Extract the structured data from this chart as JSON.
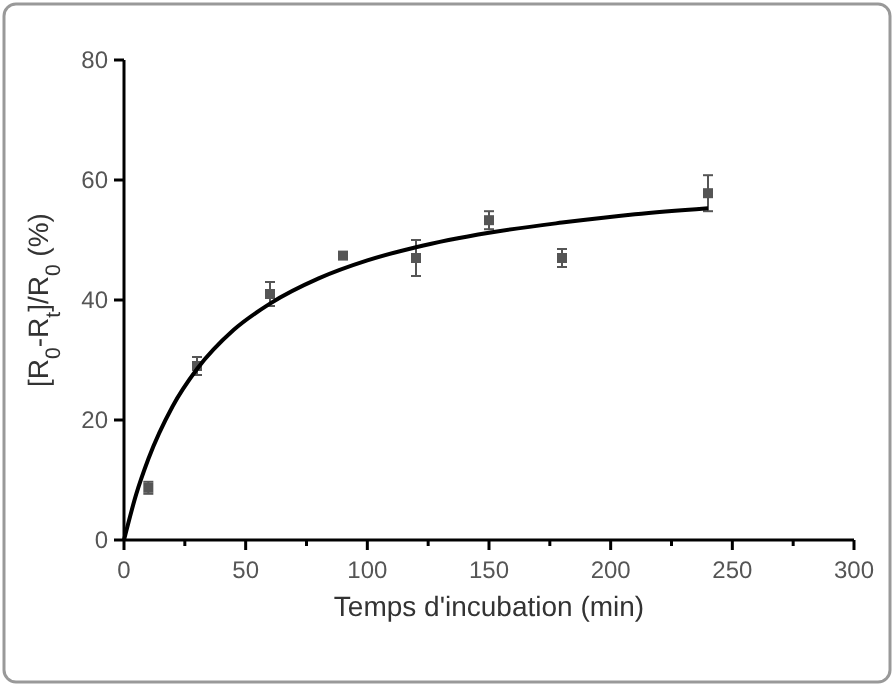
{
  "chart_data": {
    "type": "scatter",
    "xlabel": "Temps d'incubation (min)",
    "ylabel": "[R$_{0}$-R$_{t}$]/R$_{0}$ (%)",
    "xlim": [
      0,
      300
    ],
    "xticks": [
      0,
      50,
      100,
      150,
      200,
      250,
      300
    ],
    "ylim": [
      0,
      80
    ],
    "yticks": [
      0,
      20,
      40,
      60,
      80
    ],
    "grid": false,
    "marker": "square",
    "series": [
      {
        "color": "#555555",
        "x": [
          10,
          30,
          60,
          90,
          120,
          150,
          180,
          240
        ],
        "values": [
          8.7,
          29,
          41,
          47.4,
          47,
          53.3,
          47,
          57.8
        ],
        "errors": [
          1,
          1.5,
          2,
          0.5,
          3,
          1.5,
          1.5,
          3
        ]
      },
      {
        "type": "line",
        "color": "#000000",
        "marker": "none",
        "x": [
          0,
          5,
          10,
          20,
          30,
          45,
          60,
          80,
          100,
          120,
          150,
          180,
          210,
          240
        ],
        "values": [
          0,
          7.6,
          13.5,
          22.3,
          28.5,
          35,
          39.4,
          43.6,
          46.6,
          48.8,
          51.2,
          52.9,
          54.3,
          55.3
        ]
      }
    ]
  }
}
